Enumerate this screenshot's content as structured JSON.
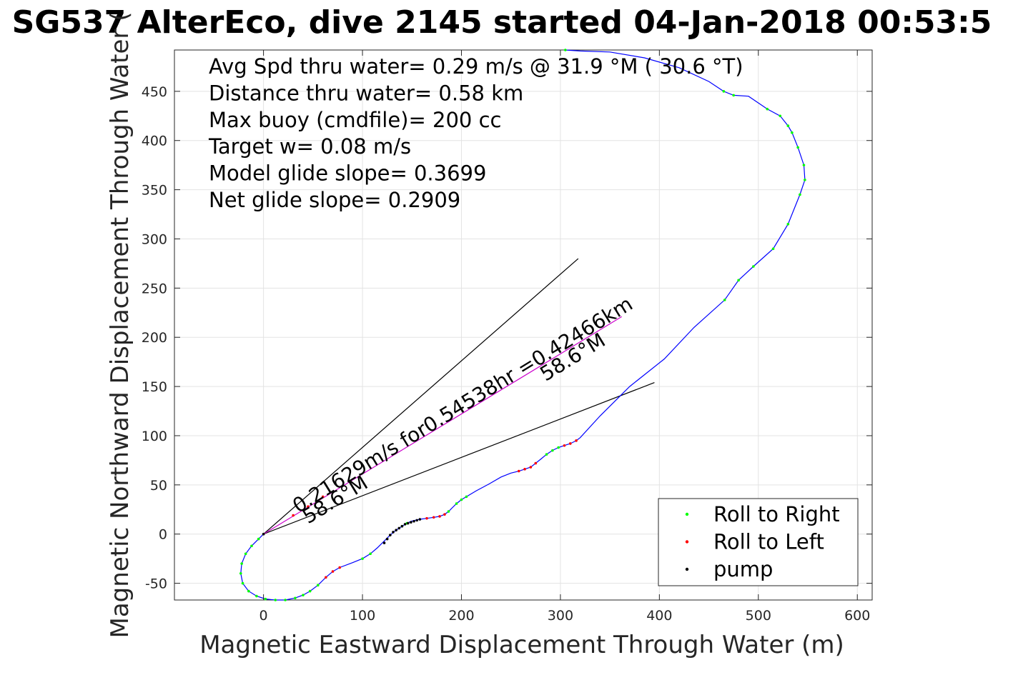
{
  "chart_data": {
    "type": "line",
    "title": "SG537 AlterEco, dive 2145 started 04-Jan-2018 00:53:5",
    "xlabel": "Magnetic Eastward Displacement Through Water (m)",
    "ylabel": "Magnetic Northward Displacement Through Water (",
    "xlim": [
      -90,
      615
    ],
    "ylim": [
      -67,
      492
    ],
    "xticks": [
      0,
      100,
      200,
      300,
      400,
      500,
      600
    ],
    "yticks": [
      -50,
      0,
      50,
      100,
      150,
      200,
      250,
      300,
      350,
      400,
      450
    ],
    "grid": true,
    "stats": [
      "Avg Spd thru water=  0.29 m/s @  31.9 °M ( 30.6 °T)",
      "Distance thru water=  0.58 km",
      "Max buoy (cmdfile)= 200 cc",
      "Target w= 0.08 m/s",
      "Model glide slope= 0.3699",
      "Net glide slope= 0.2909"
    ],
    "track": {
      "color": "#0000ff",
      "x": [
        0,
        -5,
        -12,
        -18,
        -22,
        -23,
        -21,
        -15,
        -7,
        2,
        12,
        22,
        32,
        40,
        47,
        55,
        63,
        70,
        77,
        90,
        100,
        108,
        115,
        122,
        128,
        134,
        140,
        145,
        149,
        153,
        158,
        165,
        172,
        178,
        183,
        187,
        191,
        195,
        200,
        205,
        215,
        228,
        240,
        250,
        258,
        264,
        270,
        275,
        280,
        286,
        292,
        298,
        304,
        310,
        316,
        320,
        340,
        370,
        405,
        435,
        466,
        480,
        495,
        515,
        530,
        542,
        547,
        546,
        540,
        534,
        530,
        522,
        509,
        490,
        475,
        465,
        450,
        420,
        385,
        350,
        320,
        305
      ],
      "y": [
        0,
        -5,
        -12,
        -20,
        -30,
        -40,
        -50,
        -58,
        -63,
        -66,
        -67,
        -67,
        -65,
        -62,
        -58,
        -52,
        -44,
        -38,
        -34,
        -29,
        -25,
        -20,
        -14,
        -7,
        -1,
        4,
        8,
        11,
        13,
        14,
        15,
        16,
        17,
        18,
        20,
        23,
        27,
        31,
        35,
        38,
        44,
        51,
        58,
        62,
        64,
        66,
        68,
        72,
        76,
        81,
        85,
        88,
        90,
        92,
        95,
        98,
        120,
        150,
        178,
        210,
        238,
        258,
        272,
        290,
        315,
        345,
        360,
        375,
        393,
        408,
        415,
        425,
        432,
        445,
        446,
        450,
        460,
        474,
        484,
        490,
        491,
        492
      ]
    },
    "roll_right_points": {
      "color": "#00ff00",
      "x": [
        -5,
        -12,
        -18,
        -22,
        -23,
        -21,
        -15,
        -7,
        2,
        12,
        22,
        32,
        40,
        47,
        55,
        100,
        108,
        140,
        145,
        187,
        195,
        200,
        205,
        286,
        292,
        298,
        466,
        480,
        495,
        515,
        530,
        542,
        547,
        546,
        540,
        534,
        530,
        522,
        509,
        475,
        465,
        305
      ],
      "y": [
        -5,
        -12,
        -20,
        -30,
        -40,
        -50,
        -58,
        -63,
        -66,
        -67,
        -67,
        -65,
        -62,
        -58,
        -52,
        -25,
        -20,
        8,
        11,
        23,
        31,
        35,
        38,
        81,
        85,
        88,
        238,
        258,
        272,
        290,
        315,
        345,
        360,
        375,
        393,
        408,
        415,
        425,
        432,
        446,
        450,
        492
      ]
    },
    "roll_left_points": {
      "color": "#ff0000",
      "x": [
        63,
        70,
        77,
        165,
        172,
        178,
        183,
        258,
        264,
        270,
        275,
        304,
        310,
        316,
        30,
        45,
        60
      ],
      "y": [
        -44,
        -38,
        -34,
        16,
        17,
        18,
        20,
        64,
        66,
        68,
        72,
        90,
        92,
        95,
        19,
        28,
        38
      ]
    },
    "pump_points": {
      "color": "#000000",
      "x": [
        0,
        122,
        125,
        128,
        131,
        134,
        137,
        140,
        143,
        146,
        149,
        152,
        155,
        158
      ],
      "y": [
        0,
        -9,
        -5,
        -1,
        2,
        4,
        6,
        8,
        10,
        11,
        12,
        13,
        14,
        15
      ]
    },
    "heading_line": {
      "color": "#cc00cc",
      "x": [
        0,
        362
      ],
      "y": [
        0,
        221
      ]
    },
    "wedge_lines": [
      {
        "x": [
          0,
          318
        ],
        "y": [
          0,
          280
        ]
      },
      {
        "x": [
          0,
          395
        ],
        "y": [
          0,
          154
        ]
      }
    ],
    "annotations": [
      {
        "text": "0.21629m/s for0.54538hr =0.42466km",
        "x": 35,
        "y": 21,
        "angle_deg": 31.5
      },
      {
        "text": "58.6°M",
        "x": 45,
        "y": 10,
        "angle_deg": 31.5
      },
      {
        "text": "58.6°M",
        "x": 285,
        "y": 155,
        "angle_deg": 31.5
      }
    ],
    "legend": {
      "position": "bottom-right",
      "entries": [
        {
          "label": "Roll to Right",
          "color": "#00ff00"
        },
        {
          "label": "Roll to Left",
          "color": "#ff0000"
        },
        {
          "label": "pump",
          "color": "#000000"
        }
      ]
    }
  }
}
